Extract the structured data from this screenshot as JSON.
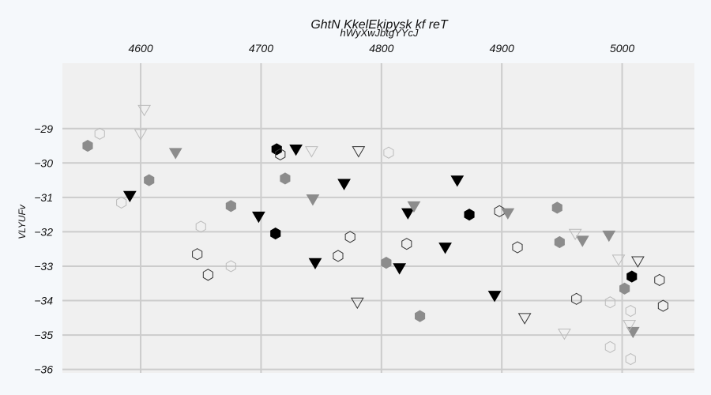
{
  "chart_data": {
    "type": "scatter",
    "title": "GhtN KkelEkipysk kf reT",
    "subtitle": "hWyXwJbtgYYcJ",
    "xlabel": "",
    "ylabel": "VLYUFv",
    "xlim": [
      4535,
      5060
    ],
    "ylim": [
      -36.1,
      -27.1
    ],
    "x_ticks": [
      4600,
      4700,
      4800,
      4900,
      5000
    ],
    "y_ticks": [
      -29,
      -30,
      -31,
      -32,
      -33,
      -34,
      -35,
      -36
    ],
    "x_axis_position": "top",
    "grid": true,
    "colors": {
      "background": "#f0f0f0",
      "grid": "#cccccc",
      "dark": "#000000",
      "mid": "#8c8c8c",
      "light": "#bbbbbb",
      "outline": "#333333"
    },
    "series": [
      {
        "marker": "hexagon",
        "style": "filled",
        "color": "#8c8c8c",
        "points": [
          [
            4556,
            -29.5
          ],
          [
            4607,
            -30.5
          ],
          [
            4675,
            -31.25
          ],
          [
            4720,
            -30.45
          ],
          [
            4804,
            -32.9
          ],
          [
            4832,
            -34.45
          ],
          [
            4946,
            -31.3
          ],
          [
            4948,
            -32.3
          ],
          [
            5002,
            -33.65
          ]
        ]
      },
      {
        "marker": "hexagon",
        "style": "filled",
        "color": "#000000",
        "points": [
          [
            4713,
            -29.6
          ],
          [
            4712,
            -32.05
          ],
          [
            4873,
            -31.5
          ],
          [
            5008,
            -33.3
          ]
        ]
      },
      {
        "marker": "hexagon",
        "style": "hollow",
        "color": "#bbbbbb",
        "points": [
          [
            4566,
            -29.15
          ],
          [
            4584,
            -31.15
          ],
          [
            4650,
            -31.85
          ],
          [
            4675,
            -33.0
          ],
          [
            4806,
            -29.7
          ],
          [
            4990,
            -34.05
          ],
          [
            4990,
            -35.35
          ],
          [
            5007,
            -34.3
          ],
          [
            5007,
            -35.7
          ]
        ]
      },
      {
        "marker": "hexagon",
        "style": "hollow",
        "color": "#333333",
        "points": [
          [
            4716,
            -29.75
          ],
          [
            4647,
            -32.65
          ],
          [
            4656,
            -33.25
          ],
          [
            4764,
            -32.7
          ],
          [
            4774,
            -32.15
          ],
          [
            4821,
            -32.35
          ],
          [
            4898,
            -31.4
          ],
          [
            4913,
            -32.45
          ],
          [
            4962,
            -33.95
          ],
          [
            5031,
            -33.4
          ],
          [
            5034,
            -34.15
          ]
        ]
      },
      {
        "marker": "triangle-down",
        "style": "filled",
        "color": "#000000",
        "points": [
          [
            4591,
            -30.95
          ],
          [
            4729,
            -29.6
          ],
          [
            4698,
            -31.55
          ],
          [
            4745,
            -32.9
          ],
          [
            4769,
            -30.6
          ],
          [
            4815,
            -33.05
          ],
          [
            4822,
            -31.45
          ],
          [
            4853,
            -32.45
          ],
          [
            4863,
            -30.5
          ],
          [
            4894,
            -33.85
          ]
        ]
      },
      {
        "marker": "triangle-down",
        "style": "filled",
        "color": "#8c8c8c",
        "points": [
          [
            4629,
            -29.7
          ],
          [
            4743,
            -31.05
          ],
          [
            4827,
            -31.25
          ],
          [
            4905,
            -31.45
          ],
          [
            4967,
            -32.25
          ],
          [
            4989,
            -32.1
          ],
          [
            5009,
            -34.9
          ]
        ]
      },
      {
        "marker": "triangle-down",
        "style": "hollow",
        "color": "#bbbbbb",
        "points": [
          [
            4603,
            -28.45
          ],
          [
            4600,
            -29.15
          ],
          [
            4742,
            -29.65
          ],
          [
            4961,
            -32.05
          ],
          [
            4952,
            -34.95
          ],
          [
            4997,
            -32.8
          ],
          [
            5006,
            -34.7
          ]
        ]
      },
      {
        "marker": "triangle-down",
        "style": "hollow",
        "color": "#333333",
        "points": [
          [
            4781,
            -29.65
          ],
          [
            4780,
            -34.05
          ],
          [
            4919,
            -34.5
          ],
          [
            5013,
            -32.85
          ]
        ]
      }
    ]
  }
}
